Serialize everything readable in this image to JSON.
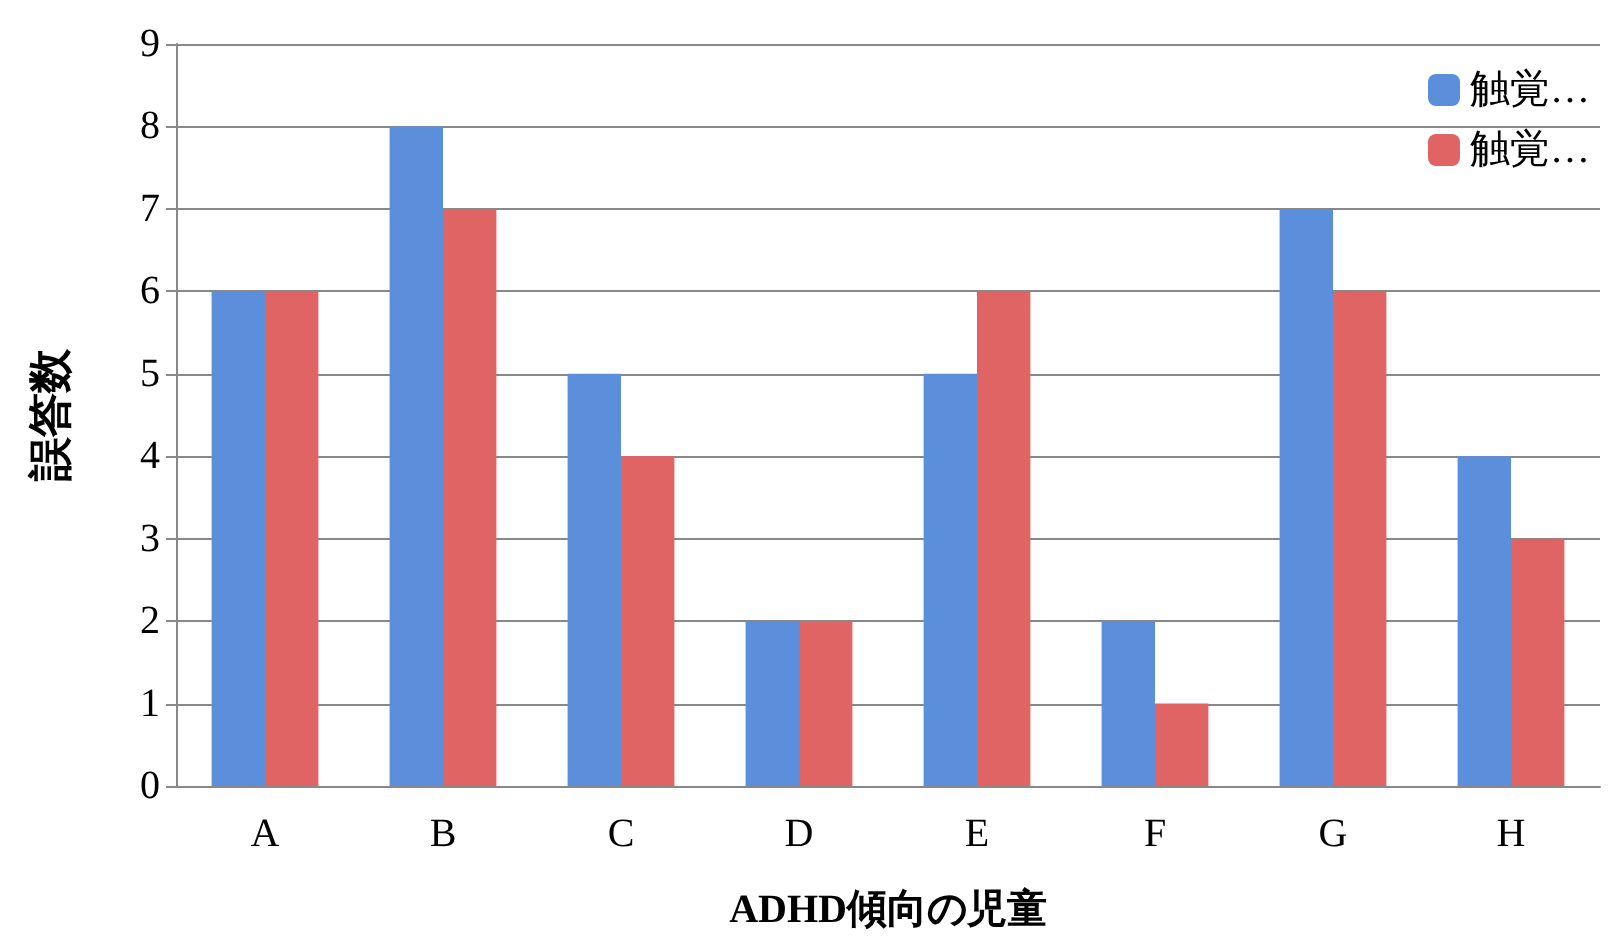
{
  "chart_data": {
    "type": "bar",
    "xlabel": "ADHD傾向の児童",
    "ylabel": "誤答数",
    "categories": [
      "A",
      "B",
      "C",
      "D",
      "E",
      "F",
      "G",
      "H"
    ],
    "series": [
      {
        "name": "触覚…",
        "color": "#5b8fdc",
        "values": [
          6,
          8,
          5,
          2,
          5,
          2,
          7,
          4
        ]
      },
      {
        "name": "触覚…",
        "color": "#e06464",
        "values": [
          6,
          7,
          4,
          2,
          6,
          1,
          6,
          3
        ]
      }
    ],
    "ylim": [
      0,
      9
    ],
    "yticks": [
      0,
      1,
      2,
      3,
      4,
      5,
      6,
      7,
      8,
      9
    ],
    "grid": "y",
    "legend": "top right"
  }
}
